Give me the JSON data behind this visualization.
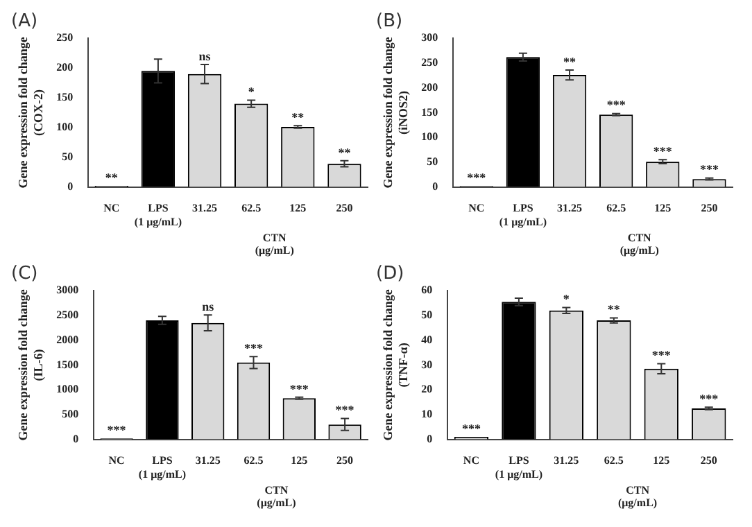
{
  "chart_data": [
    {
      "type": "bar",
      "title": "(A)",
      "ylabel": "Gene expression fold change\n(COX-2)",
      "categories": [
        "NC",
        "LPS (1 μg/mL)",
        "31.25",
        "62.5",
        "125",
        "250"
      ],
      "values": [
        2,
        195,
        190,
        140,
        101,
        39
      ],
      "errors": [
        null,
        20,
        16,
        6,
        2,
        5
      ],
      "colors": [
        "#d9d9d9",
        "#000000",
        "#d9d9d9",
        "#d9d9d9",
        "#d9d9d9",
        "#d9d9d9"
      ],
      "ylim": [
        0,
        250
      ],
      "yticks": [
        0,
        50,
        100,
        150,
        200,
        250
      ],
      "grid": false,
      "legend": false,
      "annotations": [
        "CTN (μg/mL)",
        {
          "text": "**",
          "x": "NC",
          "y": 2
        },
        {
          "text": "ns",
          "x": "31.25",
          "y": 206
        },
        {
          "text": "*",
          "x": "62.5",
          "y": 146
        },
        {
          "text": "**",
          "x": "125",
          "y": 103
        },
        {
          "text": "**",
          "x": "250",
          "y": 44
        }
      ]
    },
    {
      "type": "bar",
      "title": "(B)",
      "ylabel": "Gene expression fold change\n(iNOS2)",
      "categories": [
        "NC",
        "LPS (1 μg/mL)",
        "31.25",
        "62.5",
        "125",
        "250"
      ],
      "values": [
        2,
        262,
        226,
        146,
        51,
        16
      ],
      "errors": [
        null,
        8,
        10,
        2,
        4,
        2
      ],
      "colors": [
        "#d9d9d9",
        "#000000",
        "#d9d9d9",
        "#d9d9d9",
        "#d9d9d9",
        "#d9d9d9"
      ],
      "ylim": [
        0,
        300
      ],
      "yticks": [
        0,
        50,
        100,
        150,
        200,
        250,
        300
      ],
      "grid": false,
      "legend": false,
      "annotations": [
        "CTN (μg/mL)",
        {
          "text": "***",
          "x": "NC",
          "y": 2
        },
        {
          "text": "**",
          "x": "31.25",
          "y": 236
        },
        {
          "text": "***",
          "x": "62.5",
          "y": 148
        },
        {
          "text": "***",
          "x": "125",
          "y": 55
        },
        {
          "text": "***",
          "x": "250",
          "y": 18
        }
      ]
    },
    {
      "type": "bar",
      "title": "(C)",
      "ylabel": "Gene expression fold change\n(IL-6)",
      "categories": [
        "NC",
        "LPS (1 μg/mL)",
        "31.25",
        "62.5",
        "125",
        "250"
      ],
      "values": [
        20,
        2400,
        2350,
        1550,
        830,
        300
      ],
      "errors": [
        null,
        80,
        160,
        120,
        20,
        120
      ],
      "colors": [
        "#d9d9d9",
        "#000000",
        "#d9d9d9",
        "#d9d9d9",
        "#d9d9d9",
        "#d9d9d9"
      ],
      "ylim": [
        0,
        3000
      ],
      "yticks": [
        0,
        500,
        1000,
        1500,
        2000,
        2500,
        3000
      ],
      "grid": false,
      "legend": false,
      "annotations": [
        "CTN (μg/mL)",
        {
          "text": "***",
          "x": "NC",
          "y": 20
        },
        {
          "text": "ns",
          "x": "31.25",
          "y": 2510
        },
        {
          "text": "***",
          "x": "62.5",
          "y": 1670
        },
        {
          "text": "***",
          "x": "125",
          "y": 850
        },
        {
          "text": "***",
          "x": "250",
          "y": 420
        }
      ]
    },
    {
      "type": "bar",
      "title": "(D)",
      "ylabel": "Gene expression fold change\n(TNF-α)",
      "categories": [
        "NC",
        "LPS (1 μg/mL)",
        "31.25",
        "62.5",
        "125",
        "250"
      ],
      "values": [
        1,
        55.5,
        52,
        48,
        28.5,
        12.5
      ],
      "errors": [
        null,
        1.5,
        1.2,
        1,
        2,
        0.5
      ],
      "colors": [
        "#d9d9d9",
        "#000000",
        "#d9d9d9",
        "#d9d9d9",
        "#d9d9d9",
        "#d9d9d9"
      ],
      "ylim": [
        0,
        60
      ],
      "yticks": [
        0,
        10,
        20,
        30,
        40,
        50,
        60
      ],
      "grid": false,
      "legend": false,
      "annotations": [
        "CTN (μg/mL)",
        {
          "text": "***",
          "x": "NC",
          "y": 1
        },
        {
          "text": "*",
          "x": "31.25",
          "y": 53.2
        },
        {
          "text": "**",
          "x": "62.5",
          "y": 49
        },
        {
          "text": "***",
          "x": "125",
          "y": 30.5
        },
        {
          "text": "***",
          "x": "250",
          "y": 13
        }
      ]
    }
  ]
}
